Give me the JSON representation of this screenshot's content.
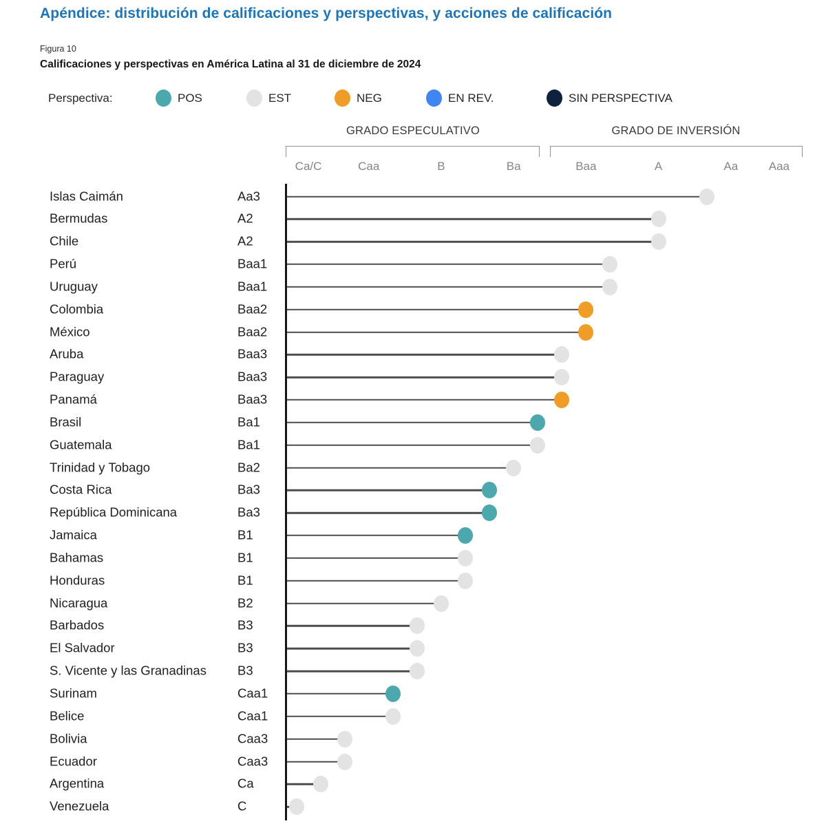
{
  "page": {
    "title": "Apéndice: distribución de calificaciones y perspectivas, y acciones de calificación",
    "figure_label": "Figura 10",
    "subtitle": "Calificaciones y perspectivas en América Latina al 31 de diciembre de 2024"
  },
  "legend": {
    "label": "Perspectiva:",
    "items": [
      {
        "key": "POS",
        "label": "POS",
        "color": "#4ba9ad"
      },
      {
        "key": "EST",
        "label": "EST",
        "color": "#e3e3e3"
      },
      {
        "key": "NEG",
        "label": "NEG",
        "color": "#f09d27"
      },
      {
        "key": "EN_REV",
        "label": "EN REV.",
        "color": "#3f86f2"
      },
      {
        "key": "SIN_PERSPECTIVA",
        "label": "SIN PERSPECTIVA",
        "color": "#0e2240"
      }
    ]
  },
  "chart_data": {
    "type": "scatter",
    "variant": "lollipop",
    "title": "Calificaciones y perspectivas en América Latina al 31 de diciembre de 2024",
    "legend_position": "top",
    "grid": false,
    "group_headers": [
      {
        "label": "GRADO ESPECULATIVO",
        "span_ratings": [
          "C",
          "Ba1"
        ]
      },
      {
        "label": "GRADO DE INVERSIÓN",
        "span_ratings": [
          "Baa3",
          "Aaa"
        ]
      }
    ],
    "x_ticks": [
      {
        "label": "Ca/C",
        "value": 0.5
      },
      {
        "label": "Caa",
        "value": 3
      },
      {
        "label": "B",
        "value": 6
      },
      {
        "label": "Ba",
        "value": 9
      },
      {
        "label": "Baa",
        "value": 12
      },
      {
        "label": "A",
        "value": 15
      },
      {
        "label": "Aa",
        "value": 18
      },
      {
        "label": "Aaa",
        "value": 20
      }
    ],
    "xlim": [
      0,
      20
    ],
    "rating_scale": {
      "C": 0,
      "Ca": 1,
      "Caa3": 2,
      "Caa2": 3,
      "Caa1": 4,
      "B3": 5,
      "B2": 6,
      "B1": 7,
      "Ba3": 8,
      "Ba2": 9,
      "Ba1": 10,
      "Baa3": 11,
      "Baa2": 12,
      "Baa1": 13,
      "A3": 14,
      "A2": 15,
      "A1": 16,
      "Aa3": 17,
      "Aa2": 18,
      "Aa1": 19,
      "Aaa": 20
    },
    "rows": [
      {
        "country": "Islas Caimán",
        "rating": "Aa3",
        "outlook": "EST"
      },
      {
        "country": "Bermudas",
        "rating": "A2",
        "outlook": "EST"
      },
      {
        "country": "Chile",
        "rating": "A2",
        "outlook": "EST"
      },
      {
        "country": "Perú",
        "rating": "Baa1",
        "outlook": "EST"
      },
      {
        "country": "Uruguay",
        "rating": "Baa1",
        "outlook": "EST"
      },
      {
        "country": "Colombia",
        "rating": "Baa2",
        "outlook": "NEG"
      },
      {
        "country": "México",
        "rating": "Baa2",
        "outlook": "NEG"
      },
      {
        "country": "Aruba",
        "rating": "Baa3",
        "outlook": "EST"
      },
      {
        "country": "Paraguay",
        "rating": "Baa3",
        "outlook": "EST"
      },
      {
        "country": "Panamá",
        "rating": "Baa3",
        "outlook": "NEG"
      },
      {
        "country": "Brasil",
        "rating": "Ba1",
        "outlook": "POS"
      },
      {
        "country": "Guatemala",
        "rating": "Ba1",
        "outlook": "EST"
      },
      {
        "country": "Trinidad y Tobago",
        "rating": "Ba2",
        "outlook": "EST"
      },
      {
        "country": "Costa Rica",
        "rating": "Ba3",
        "outlook": "POS"
      },
      {
        "country": "República Dominicana",
        "rating": "Ba3",
        "outlook": "POS"
      },
      {
        "country": "Jamaica",
        "rating": "B1",
        "outlook": "POS"
      },
      {
        "country": "Bahamas",
        "rating": "B1",
        "outlook": "EST"
      },
      {
        "country": "Honduras",
        "rating": "B1",
        "outlook": "EST"
      },
      {
        "country": "Nicaragua",
        "rating": "B2",
        "outlook": "EST"
      },
      {
        "country": "Barbados",
        "rating": "B3",
        "outlook": "EST"
      },
      {
        "country": "El Salvador",
        "rating": "B3",
        "outlook": "EST"
      },
      {
        "country": "S. Vicente y las Granadinas",
        "rating": "B3",
        "outlook": "EST"
      },
      {
        "country": "Surinam",
        "rating": "Caa1",
        "outlook": "POS"
      },
      {
        "country": "Belice",
        "rating": "Caa1",
        "outlook": "EST"
      },
      {
        "country": "Bolivia",
        "rating": "Caa3",
        "outlook": "EST"
      },
      {
        "country": "Ecuador",
        "rating": "Caa3",
        "outlook": "EST"
      },
      {
        "country": "Argentina",
        "rating": "Ca",
        "outlook": "EST"
      },
      {
        "country": "Venezuela",
        "rating": "C",
        "outlook": "EST"
      }
    ]
  }
}
